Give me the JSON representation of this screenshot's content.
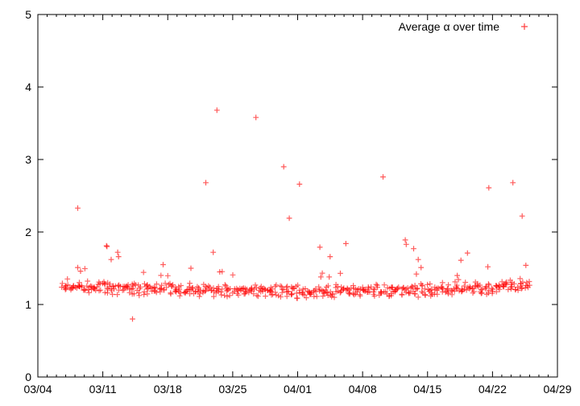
{
  "window": {
    "background": "#ffffff"
  },
  "chart_data": {
    "type": "scatter",
    "title": "",
    "legend": "Average α over time",
    "legend_position": "top-right-inside",
    "marker": "plus",
    "marker_color": "#ff0000",
    "axis_color": "#000000",
    "grid": false,
    "x_axis": {
      "label": "",
      "tick_labels": [
        "03/04",
        "03/11",
        "03/18",
        "03/25",
        "04/01",
        "04/08",
        "04/15",
        "04/22",
        "04/29"
      ],
      "range_days": [
        0,
        56
      ],
      "major_tick_interval_days": 7,
      "minor_tick_interval_days": 1
    },
    "y_axis": {
      "label": "",
      "tick_labels": [
        "0",
        "1",
        "2",
        "3",
        "4",
        "5"
      ],
      "range": [
        0,
        5
      ],
      "major_tick_interval": 1
    },
    "outlier_points_day_value": [
      [
        4.3,
        2.33
      ],
      [
        4.3,
        1.51
      ],
      [
        4.6,
        1.46
      ],
      [
        7.4,
        1.81
      ],
      [
        7.45,
        1.8
      ],
      [
        7.9,
        1.62
      ],
      [
        8.6,
        1.72
      ],
      [
        8.7,
        1.66
      ],
      [
        10.2,
        0.8
      ],
      [
        13.5,
        1.55
      ],
      [
        16.5,
        1.5
      ],
      [
        18.1,
        2.68
      ],
      [
        18.9,
        1.72
      ],
      [
        19.3,
        3.68
      ],
      [
        19.6,
        1.45
      ],
      [
        23.5,
        3.58
      ],
      [
        26.5,
        2.9
      ],
      [
        27.1,
        2.19
      ],
      [
        28.2,
        2.66
      ],
      [
        30.4,
        1.79
      ],
      [
        30.5,
        1.38
      ],
      [
        31.4,
        1.38
      ],
      [
        31.5,
        1.66
      ],
      [
        32.6,
        1.43
      ],
      [
        33.2,
        1.84
      ],
      [
        37.2,
        2.76
      ],
      [
        39.6,
        1.89
      ],
      [
        39.7,
        1.83
      ],
      [
        40.5,
        1.77
      ],
      [
        40.8,
        1.42
      ],
      [
        41.0,
        1.62
      ],
      [
        41.3,
        1.51
      ],
      [
        45.2,
        1.4
      ],
      [
        45.6,
        1.61
      ],
      [
        46.3,
        1.71
      ],
      [
        48.5,
        1.52
      ],
      [
        48.6,
        2.61
      ],
      [
        51.2,
        2.68
      ],
      [
        52.2,
        2.22
      ],
      [
        52.6,
        1.54
      ]
    ],
    "band_spec": {
      "description": "dense noisy band of samples; day offsets measured from 03/04",
      "day_start": 2.6,
      "day_end": 53.0,
      "n_points": 560,
      "seed": 42,
      "mean_profile": [
        [
          2.6,
          1.26
        ],
        [
          7,
          1.23
        ],
        [
          14,
          1.21
        ],
        [
          21,
          1.19
        ],
        [
          28,
          1.18
        ],
        [
          35,
          1.19
        ],
        [
          42,
          1.2
        ],
        [
          48,
          1.23
        ],
        [
          53,
          1.26
        ]
      ],
      "jitter": 0.065,
      "x_jitter_days": 0.2,
      "fringe_probability": 0.035,
      "fringe_boost": [
        0.08,
        0.28
      ]
    }
  }
}
